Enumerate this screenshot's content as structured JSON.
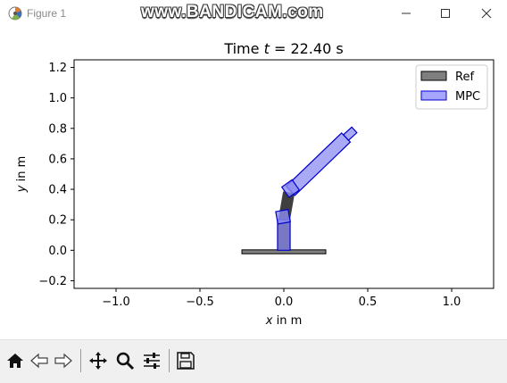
{
  "window": {
    "title": "Figure 1",
    "watermark": "www.BANDICAM.com",
    "buttons": [
      "minimize-icon",
      "maximize-icon",
      "close-icon"
    ]
  },
  "toolbar": {
    "icons": [
      "home-icon",
      "back-arrow-icon",
      "forward-arrow-icon",
      "pan-icon",
      "zoom-icon",
      "configure-subplots-icon",
      "save-icon"
    ]
  },
  "chart_data": {
    "type": "other",
    "title_prefix": "Time ",
    "title_var": "t",
    "title_value": " = 22.40 s",
    "xlabel_var": "x",
    "xlabel_unit": " in m",
    "ylabel_var": "y",
    "ylabel_unit": " in m",
    "xlim": [
      -1.25,
      1.25
    ],
    "ylim": [
      -0.25,
      1.25
    ],
    "xticks": [
      -1.0,
      -0.5,
      0.0,
      0.5,
      1.0
    ],
    "xtick_labels": [
      "−1.0",
      "−0.5",
      "0.0",
      "0.5",
      "1.0"
    ],
    "yticks": [
      -0.2,
      0.0,
      0.2,
      0.4,
      0.6,
      0.8,
      1.0,
      1.2
    ],
    "ytick_labels": [
      "−0.2",
      "0.0",
      "0.2",
      "0.4",
      "0.6",
      "0.8",
      "1.0",
      "1.2"
    ],
    "grid": false,
    "legend_position": "top-right",
    "legend": [
      {
        "name": "Ref",
        "color": "#7f7f7f",
        "edge": "#000000"
      },
      {
        "name": "MPC",
        "color": "#a6a6ff",
        "edge": "#0000cc"
      }
    ],
    "base": {
      "x_from": -0.25,
      "x_to": 0.25,
      "y": -0.01,
      "color": "#7f7f7f"
    },
    "ref": {
      "color": "#3f3f3f",
      "segments": [
        {
          "from": [
            0.0,
            0.0
          ],
          "to": [
            0.0,
            0.19
          ],
          "width": 0.07
        },
        {
          "from": [
            0.0,
            0.19
          ],
          "to": [
            0.03,
            0.38
          ],
          "width": 0.07
        }
      ]
    },
    "mpc": {
      "color": "#8c8cf2",
      "edge": "#0000cc",
      "links": [
        {
          "from": [
            0.0,
            0.0
          ],
          "to": [
            0.0,
            0.2
          ],
          "width": 0.075
        },
        {
          "from": [
            0.04,
            0.39
          ],
          "to": [
            0.37,
            0.74
          ],
          "width": 0.075
        },
        {
          "from": [
            0.37,
            0.74
          ],
          "to": [
            0.42,
            0.79
          ],
          "width": 0.045
        }
      ],
      "joints": [
        {
          "center": [
            -0.005,
            0.22
          ],
          "size": 0.075,
          "angle": 10
        },
        {
          "center": [
            0.04,
            0.405
          ],
          "size": 0.075,
          "angle": 35
        }
      ]
    }
  }
}
